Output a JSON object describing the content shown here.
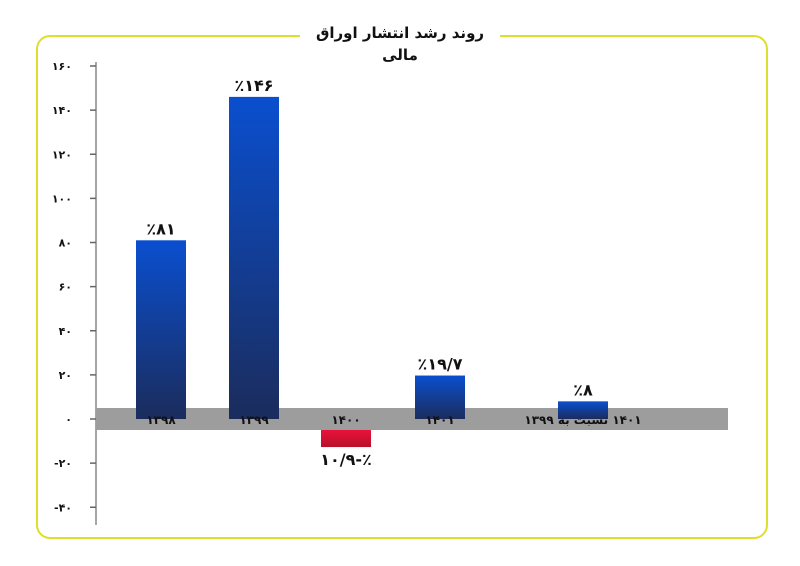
{
  "chart_data": {
    "type": "bar",
    "title": "روند رشد انتشار اوراق مالی",
    "categories": [
      "۱۳۹۸",
      "۱۳۹۹",
      "۱۴۰۰",
      "۱۴۰۱",
      "۱۴۰۱ نسبت به ۱۳۹۹"
    ],
    "values": [
      81,
      146,
      -10.9,
      19.7,
      8
    ],
    "value_labels": [
      "٪۸۱",
      "٪۱۴۶",
      "٪-۱۰/۹",
      "٪۱۹/۷",
      "٪۸"
    ],
    "yticks": [
      -40,
      -20,
      0,
      20,
      40,
      60,
      80,
      100,
      120,
      140,
      160
    ],
    "ytick_labels": [
      "-۴۰",
      "-۲۰",
      "۰",
      "۲۰",
      "۴۰",
      "۶۰",
      "۸۰",
      "۱۰۰",
      "۱۲۰",
      "۱۴۰",
      "۱۶۰"
    ],
    "ylim": [
      -40,
      160
    ],
    "grid": false,
    "colors": {
      "positive_top": "#0a4fcf",
      "positive_bottom": "#1b2c5c",
      "negative_top": "#e8123a",
      "negative_bottom": "#b80f2a",
      "axis_band": "#9d9d9d",
      "frame": "#dede2e"
    }
  }
}
